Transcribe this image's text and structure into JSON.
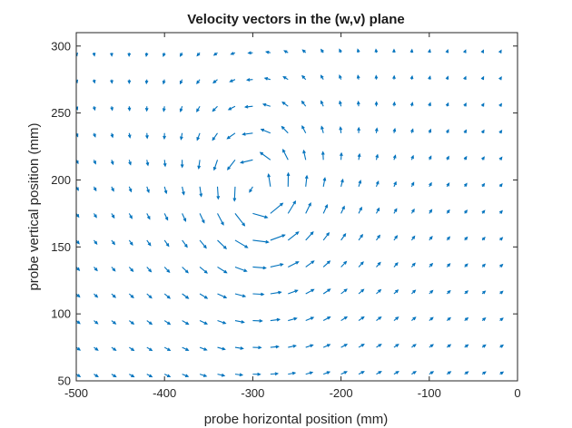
{
  "chart_data": {
    "type": "quiver",
    "title": "Velocity vectors in the (w,v) plane",
    "xlabel": "probe horizontal position (mm)",
    "ylabel": "probe vertical position (mm)",
    "xlim": [
      -500,
      0
    ],
    "ylim": [
      50,
      310
    ],
    "xticks": [
      -500,
      -400,
      -300,
      -200,
      -100,
      0
    ],
    "yticks": [
      50,
      100,
      150,
      200,
      250,
      300
    ],
    "grid": false,
    "box": true,
    "series_color": "#0072bd",
    "grid_x": {
      "start": -500,
      "end": -20,
      "step": 20
    },
    "grid_y": {
      "start": 55,
      "end": 305,
      "step": 20
    },
    "field_description": "counter-clockwise vortex centered near (-295 mm, 190 mm) with core radius ~25 mm; uniform weak rightward flow on the far right side",
    "vortex": {
      "center_x": -295,
      "center_y": 190,
      "core_radius": 25
    }
  }
}
